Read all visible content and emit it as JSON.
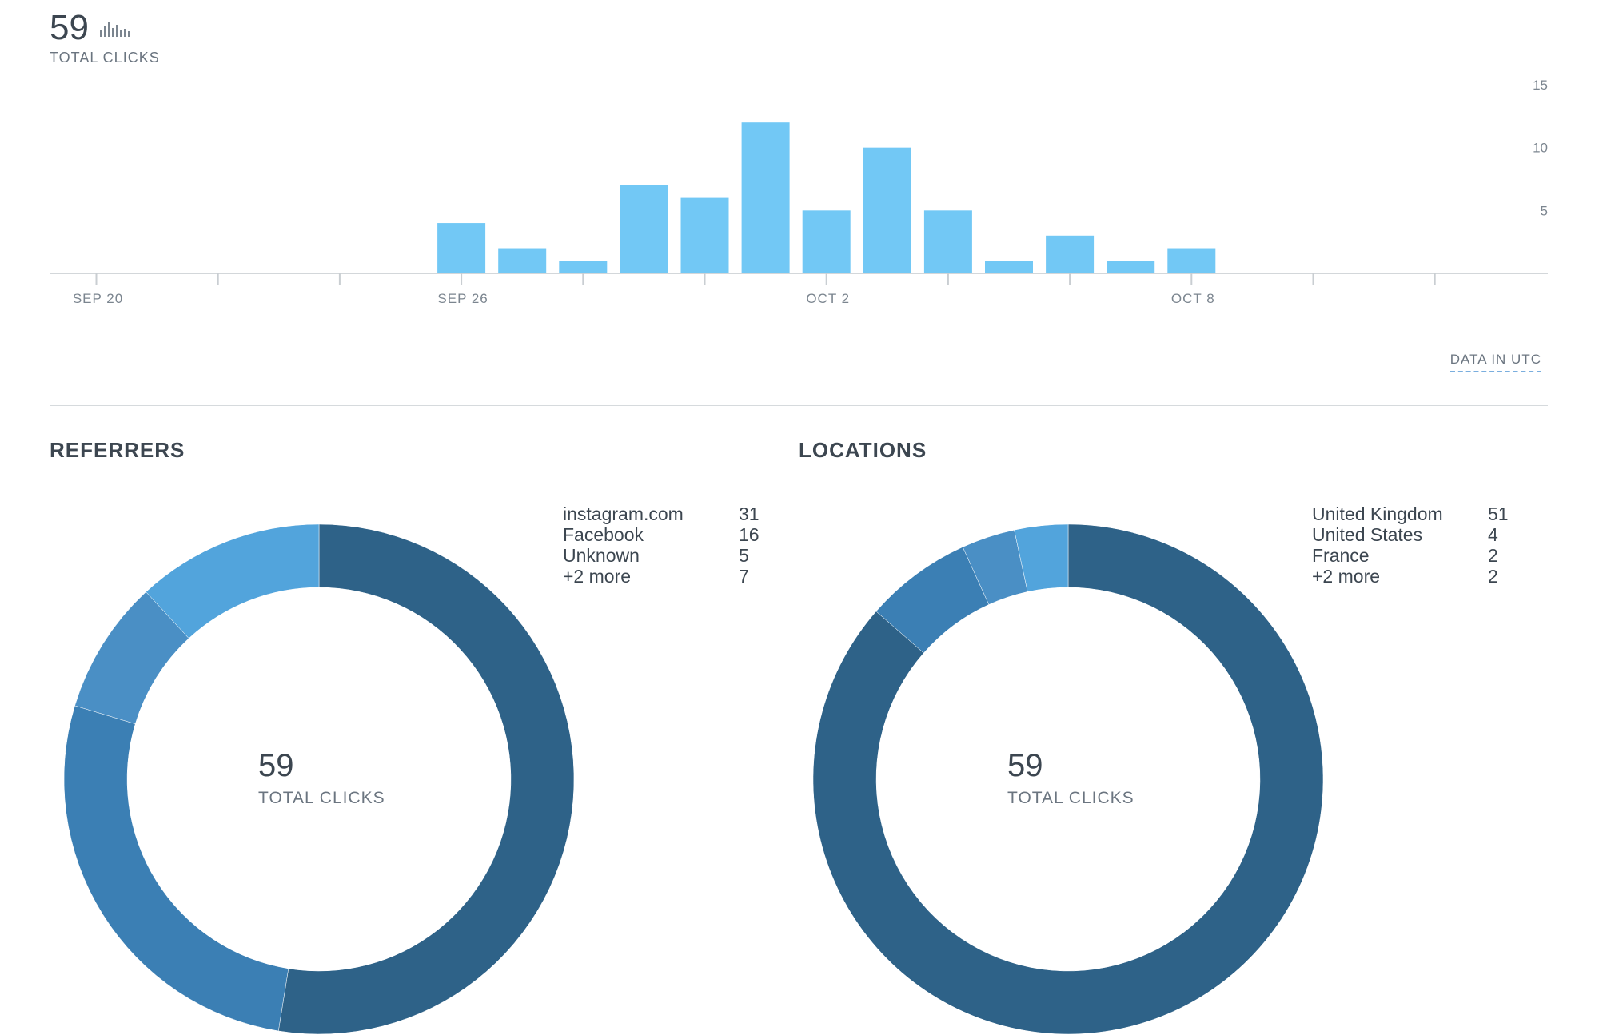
{
  "header": {
    "total_value": "59",
    "total_label": "TOTAL CLICKS",
    "icon": "bar-chart-icon"
  },
  "utc_link": "DATA IN UTC",
  "chart_data": [
    {
      "type": "bar",
      "title": "",
      "xlabel": "",
      "ylabel": "",
      "x_tick_labels": [
        "SEP 20",
        "SEP 26",
        "OCT 2",
        "OCT 8"
      ],
      "y_tick_labels": [
        "5",
        "10",
        "15"
      ],
      "ylim": [
        0,
        15
      ],
      "categories": [
        "Sep 20",
        "Sep 21",
        "Sep 22",
        "Sep 23",
        "Sep 24",
        "Sep 25",
        "Sep 26",
        "Sep 27",
        "Sep 28",
        "Sep 29",
        "Sep 30",
        "Oct 1",
        "Oct 2",
        "Oct 3",
        "Oct 4",
        "Oct 5",
        "Oct 6",
        "Oct 7",
        "Oct 8",
        "Oct 9",
        "Oct 10",
        "Oct 11",
        "Oct 12",
        "Oct 13"
      ],
      "values": [
        0,
        0,
        0,
        0,
        0,
        0,
        4,
        2,
        1,
        7,
        6,
        12,
        5,
        10,
        5,
        1,
        3,
        1,
        2,
        0,
        0,
        0,
        0,
        0
      ],
      "color": "#72c8f5",
      "grid": false
    },
    {
      "type": "pie",
      "title": "REFERRERS",
      "center_value": "59",
      "center_label": "TOTAL CLICKS",
      "labels": [
        "instagram.com",
        "Facebook",
        "Unknown",
        "+2 more"
      ],
      "values": [
        31,
        16,
        5,
        7
      ],
      "colors": [
        "#2e6288",
        "#3b7fb4",
        "#4a8fc5",
        "#52a4dc"
      ]
    },
    {
      "type": "pie",
      "title": "LOCATIONS",
      "center_value": "59",
      "center_label": "TOTAL CLICKS",
      "labels": [
        "United Kingdom",
        "United States",
        "France",
        "+2 more"
      ],
      "values": [
        51,
        4,
        2,
        2
      ],
      "colors": [
        "#2e6288",
        "#3b7fb4",
        "#4a8fc5",
        "#52a4dc"
      ]
    }
  ]
}
